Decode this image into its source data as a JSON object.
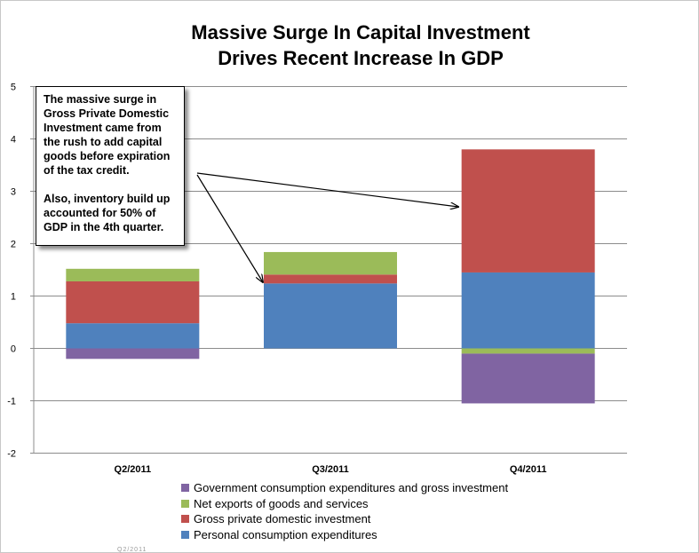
{
  "chart_data": {
    "type": "bar",
    "stacked": true,
    "title_line1": "Massive Surge In Capital Investment",
    "title_line2": "Drives Recent Increase In GDP",
    "categories": [
      "Q2/2011",
      "Q3/2011",
      "Q4/2011"
    ],
    "series": [
      {
        "name": "Personal consumption expenditures",
        "color": "#4f81bd",
        "values": [
          0.48,
          1.24,
          1.45
        ]
      },
      {
        "name": "Gross private domestic investment",
        "color": "#c0504d",
        "values": [
          0.8,
          0.17,
          2.35
        ]
      },
      {
        "name": "Net exports of goods and services",
        "color": "#9bbb59",
        "values": [
          0.24,
          0.43,
          -0.1
        ]
      },
      {
        "name": "Government consumption expenditures and gross investment",
        "color": "#8064a2",
        "values": [
          -0.2,
          0.0,
          -0.95
        ]
      }
    ],
    "legend_order": [
      3,
      2,
      1,
      0
    ],
    "legend_position": "bottom",
    "ylim": [
      -2,
      5
    ],
    "yticks": [
      -2,
      -1,
      0,
      1,
      2,
      3,
      4,
      5
    ],
    "grid": true,
    "xlabel": "",
    "ylabel": ""
  },
  "annotation": {
    "paragraph1": "The massive surge in Gross Private Domestic Investment came from the rush to add capital goods before expiration of the tax credit.",
    "paragraph2": "Also, inventory build up accounted for 50% of GDP in the 4th quarter."
  },
  "footer_fragment": "Q2/2011"
}
